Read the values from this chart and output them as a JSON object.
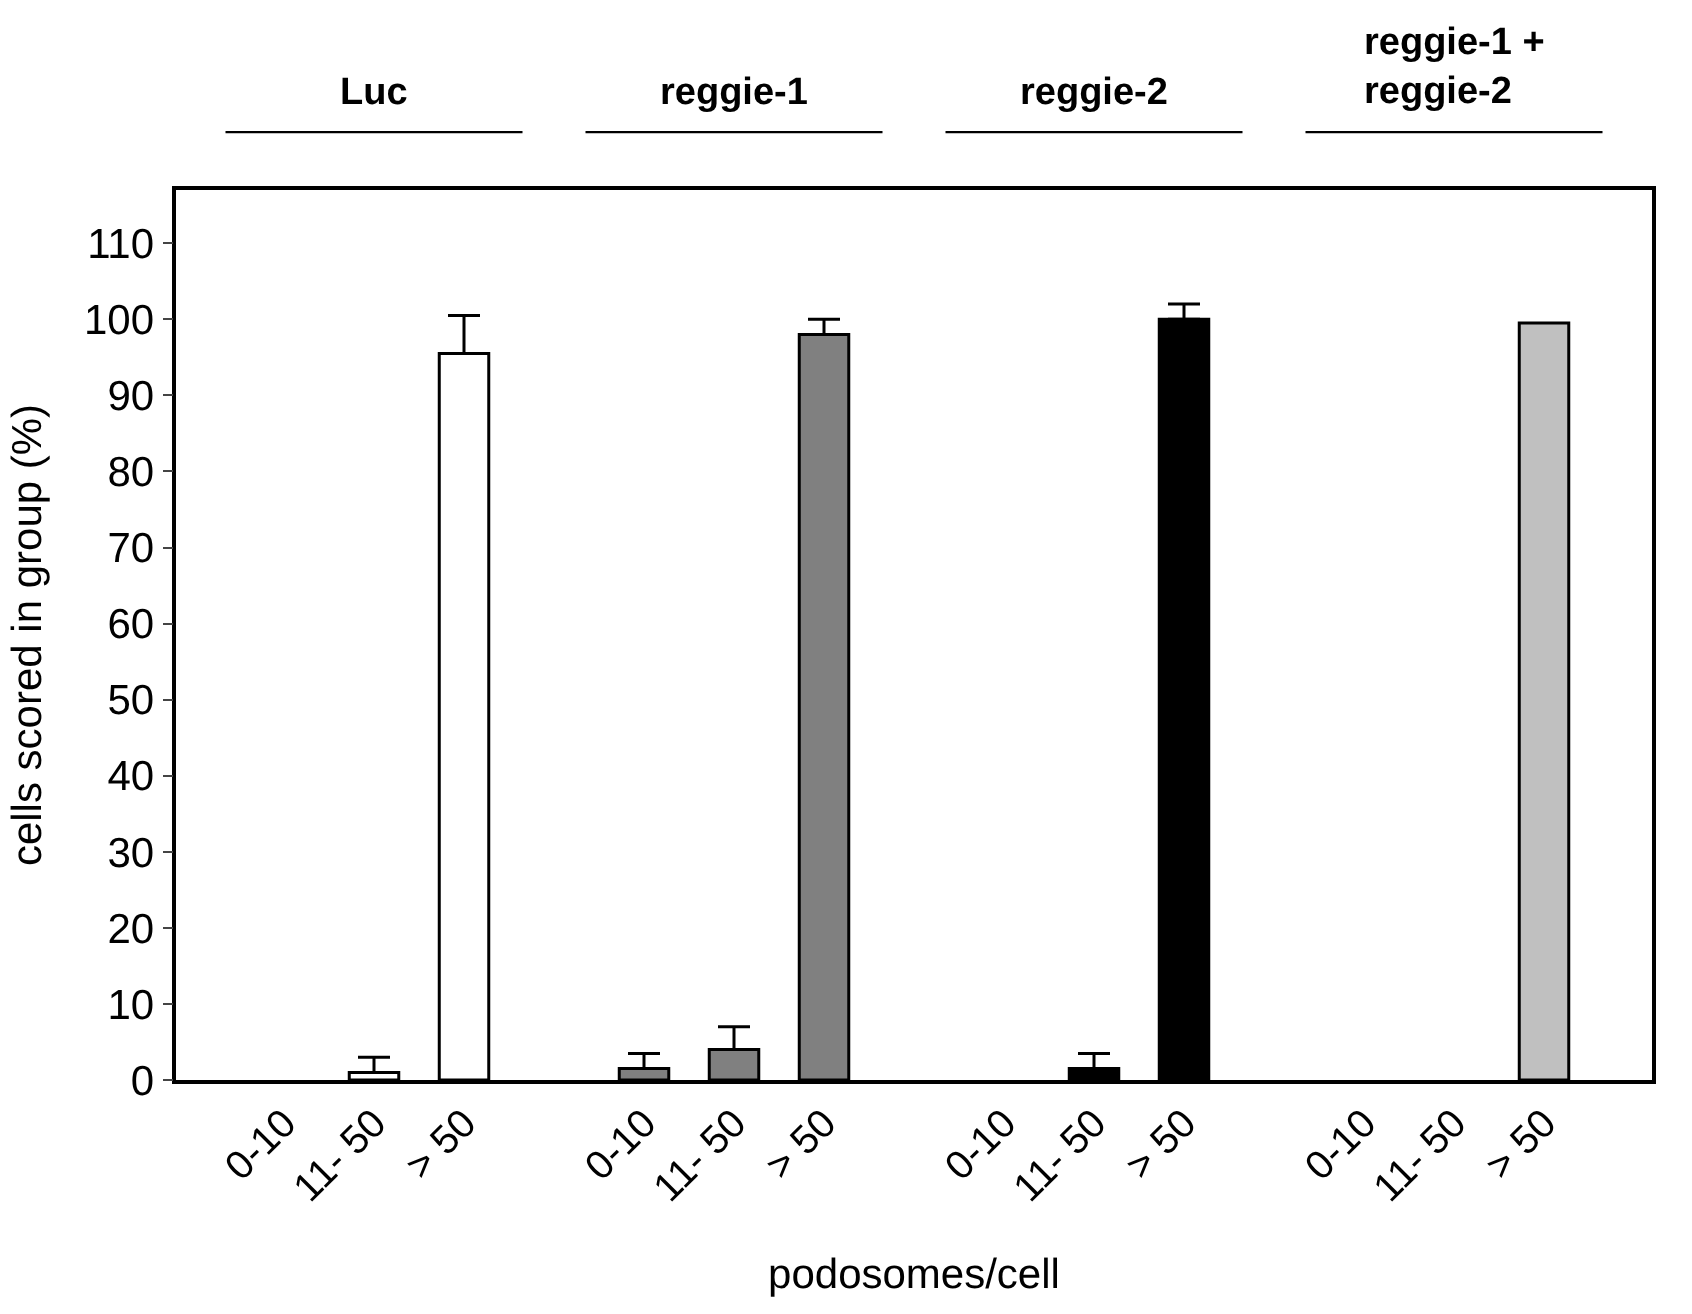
{
  "chart_data": {
    "type": "bar",
    "xlabel": "podosomes/cell",
    "ylabel": "cells scored in group (%)",
    "categories": [
      "0-10",
      "11- 50",
      "> 50",
      "0-10",
      "11- 50",
      "> 50",
      "0-10",
      "11- 50",
      "> 50",
      "0-10",
      "11- 50",
      "> 50"
    ],
    "series": [
      {
        "color": "#ffffff",
        "values": [
          null,
          1,
          95.5,
          null,
          null,
          null,
          null,
          null,
          null,
          null,
          null,
          null
        ],
        "errors": [
          null,
          2,
          5,
          null,
          null,
          null,
          null,
          null,
          null,
          null,
          null,
          null
        ]
      },
      {
        "color": "#808080",
        "values": [
          null,
          null,
          null,
          1.5,
          4,
          98,
          null,
          null,
          null,
          null,
          null,
          null
        ],
        "errors": [
          null,
          null,
          null,
          2,
          3,
          2,
          null,
          null,
          null,
          null,
          null,
          null
        ]
      },
      {
        "color": "#000000",
        "values": [
          null,
          null,
          null,
          null,
          null,
          null,
          null,
          1.5,
          100,
          null,
          null,
          null
        ],
        "errors": [
          null,
          null,
          null,
          null,
          null,
          null,
          null,
          2,
          2,
          null,
          null,
          null
        ]
      },
      {
        "color": "#c0c0c0",
        "values": [
          null,
          null,
          null,
          null,
          null,
          null,
          null,
          null,
          null,
          null,
          null,
          99.5
        ]
      }
    ],
    "annotations": [
      "Luc",
      "reggie-1",
      "reggie-2",
      "reggie-1 +\nreggie-2"
    ],
    "ylim": [
      0,
      117
    ],
    "yticks": [
      0,
      10,
      20,
      30,
      40,
      50,
      60,
      70,
      80,
      90,
      100,
      110
    ]
  }
}
